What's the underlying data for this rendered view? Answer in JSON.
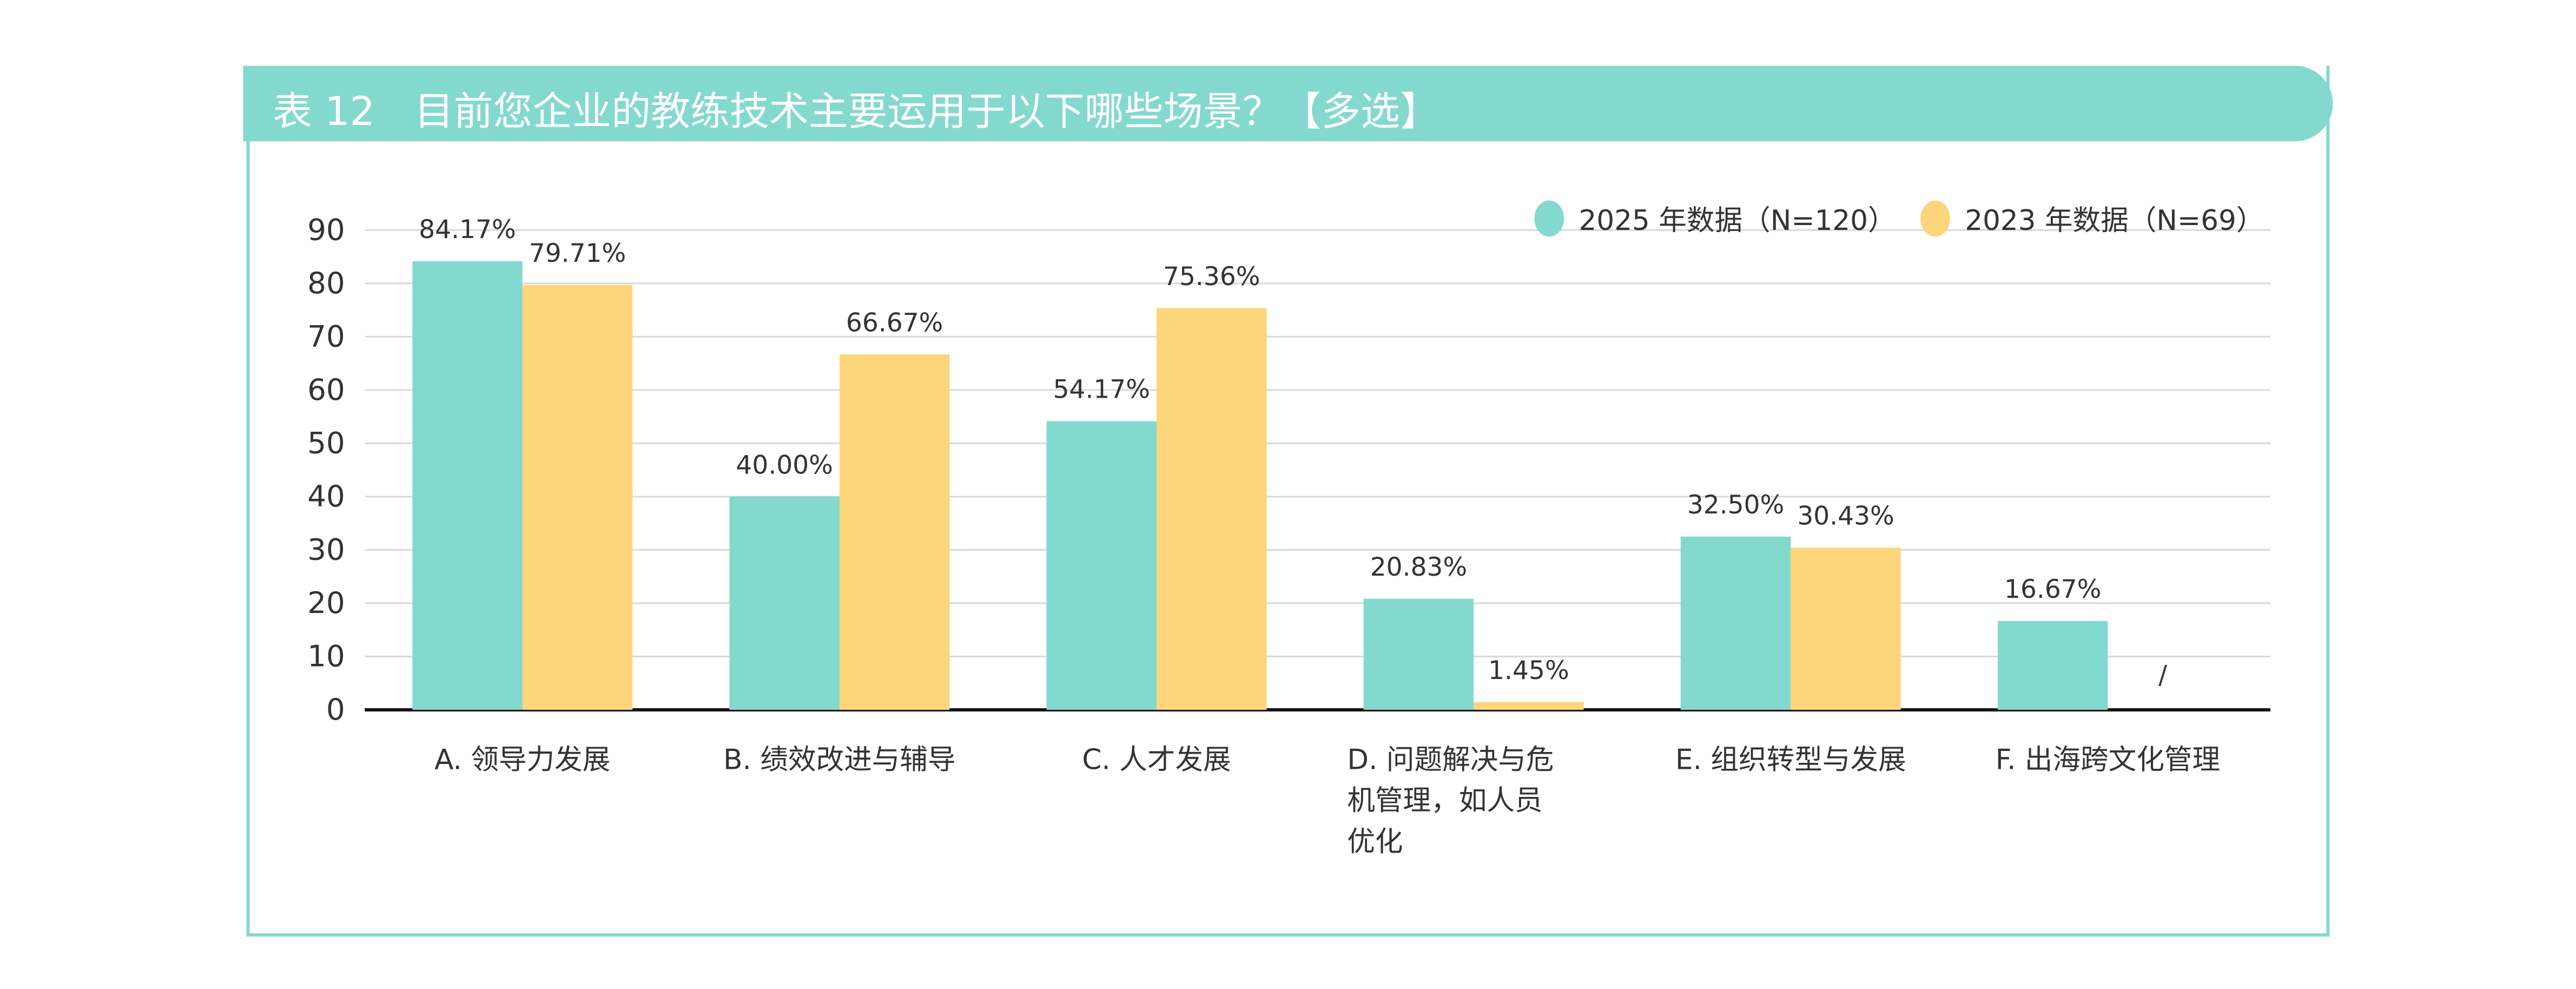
{
  "title": "表 12　目前您企业的教练技术主要运用于以下哪些场景？【多选】",
  "colors": {
    "series_2025": "#84d9cf",
    "series_2023": "#fdd57a",
    "frame": "#84d9cf"
  },
  "chart_data": {
    "type": "bar",
    "categories": [
      [
        "A. 领导力发展"
      ],
      [
        "B. 绩效改进与辅导"
      ],
      [
        "C. 人才发展"
      ],
      [
        "D. 问题解决与危",
        "机管理，如人员",
        "优化"
      ],
      [
        "E. 组织转型与发展"
      ],
      [
        "F. 出海跨文化管理"
      ]
    ],
    "series": [
      {
        "name": "2025 年数据（N=120）",
        "values": [
          84.17,
          40.0,
          54.17,
          20.83,
          32.5,
          16.67
        ],
        "labels": [
          "84.17%",
          "40.00%",
          "54.17%",
          "20.83%",
          "32.50%",
          "16.67%"
        ]
      },
      {
        "name": "2023 年数据（N=69）",
        "values": [
          79.71,
          66.67,
          75.36,
          1.45,
          30.43,
          null
        ],
        "labels": [
          "79.71%",
          "66.67%",
          "75.36%",
          "1.45%",
          "30.43%",
          "/"
        ]
      }
    ],
    "yticks": [
      "0",
      "10",
      "20",
      "30",
      "40",
      "50",
      "60",
      "70",
      "80",
      "90"
    ],
    "ylim": [
      0,
      90
    ],
    "grid": true,
    "legend": "top-right"
  }
}
